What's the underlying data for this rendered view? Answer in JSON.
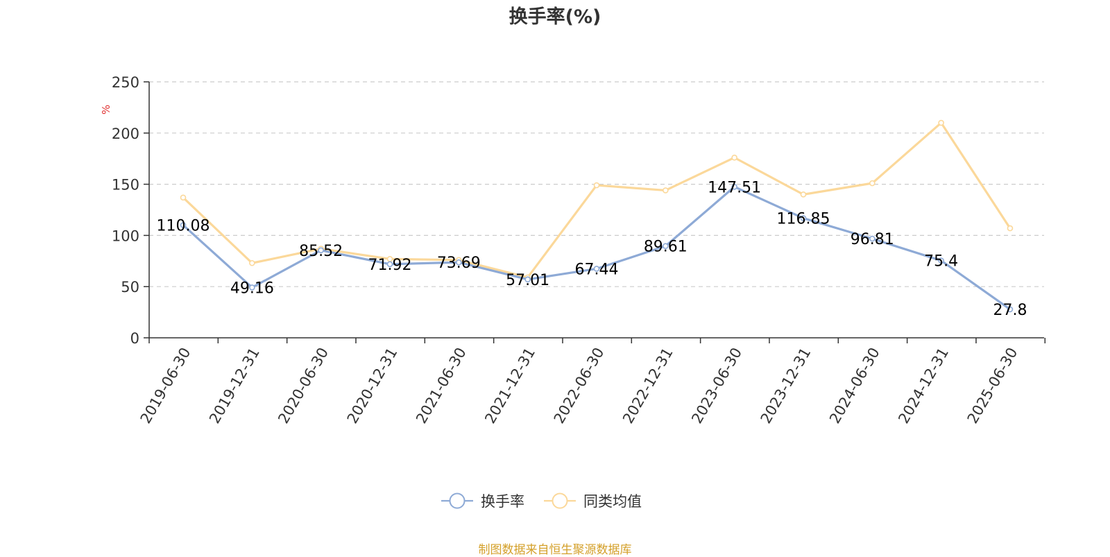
{
  "chart_data": {
    "type": "line",
    "title": "换手率(%)",
    "ylabel": "%",
    "ylim": [
      0,
      250
    ],
    "yticks": [
      0,
      50,
      100,
      150,
      200,
      250
    ],
    "grid": true,
    "legend_position": "bottom-center",
    "categories": [
      "2019-06-30",
      "2019-12-31",
      "2020-06-30",
      "2020-12-31",
      "2021-06-30",
      "2021-12-31",
      "2022-06-30",
      "2022-12-31",
      "2023-06-30",
      "2023-12-31",
      "2024-06-30",
      "2024-12-31",
      "2025-06-30"
    ],
    "series": [
      {
        "name": "换手率",
        "color": "#8eaad6",
        "values": [
          110.08,
          49.16,
          85.52,
          71.92,
          73.69,
          57.01,
          67.44,
          89.61,
          147.51,
          116.85,
          96.81,
          75.4,
          27.8
        ],
        "labels": [
          "110.08",
          "49.16",
          "85.52",
          "71.92",
          "73.69",
          "57.01",
          "67.44",
          "89.61",
          "147.51",
          "116.85",
          "96.81",
          "75.4",
          "27.8"
        ],
        "show_labels": true
      },
      {
        "name": "同类均值",
        "color": "#fbd89a",
        "values": [
          137,
          73,
          87,
          77,
          76,
          59,
          149,
          144,
          176,
          140,
          151,
          210,
          107
        ],
        "show_labels": false
      }
    ]
  },
  "colors": {
    "unit_label": "#e03030",
    "source_note": "#d4a02a"
  },
  "source_note": "制图数据来自恒生聚源数据库"
}
